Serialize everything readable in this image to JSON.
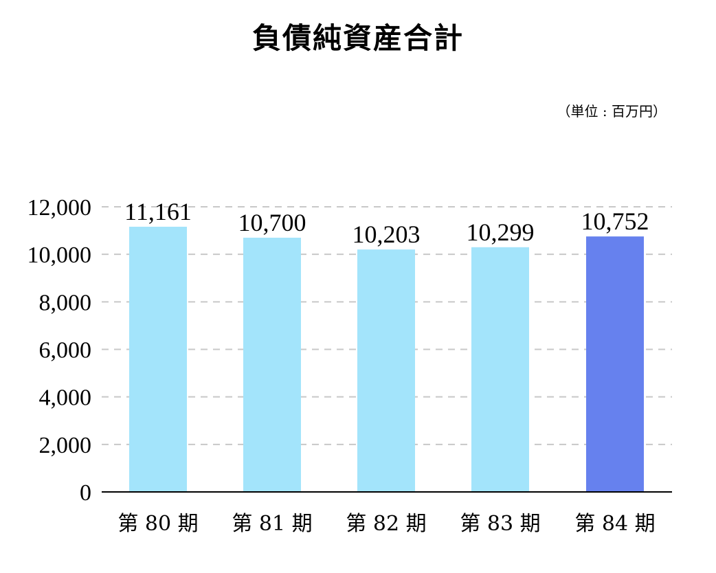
{
  "chart_data": {
    "type": "bar",
    "title": "負債純資産合計",
    "unit": "（単位 : 百万円）",
    "categories": [
      "第 80 期",
      "第 81 期",
      "第 82 期",
      "第 83 期",
      "第 84 期"
    ],
    "values": [
      11161,
      10700,
      10203,
      10299,
      10752
    ],
    "value_labels": [
      "11,161",
      "10,700",
      "10,203",
      "10,299",
      "10,752"
    ],
    "ylim": [
      0,
      12000
    ],
    "yticks": [
      0,
      2000,
      4000,
      6000,
      8000,
      10000,
      12000
    ],
    "ytick_labels": [
      "0",
      "2,000",
      "4,000",
      "6,000",
      "8,000",
      "10,000",
      "12,000"
    ],
    "grid": true,
    "colors": {
      "bar": "#a3e4fb",
      "highlight": "#6681ee",
      "grid": "#c8c8c8",
      "axis": "#000000"
    },
    "highlight_index": 4
  }
}
